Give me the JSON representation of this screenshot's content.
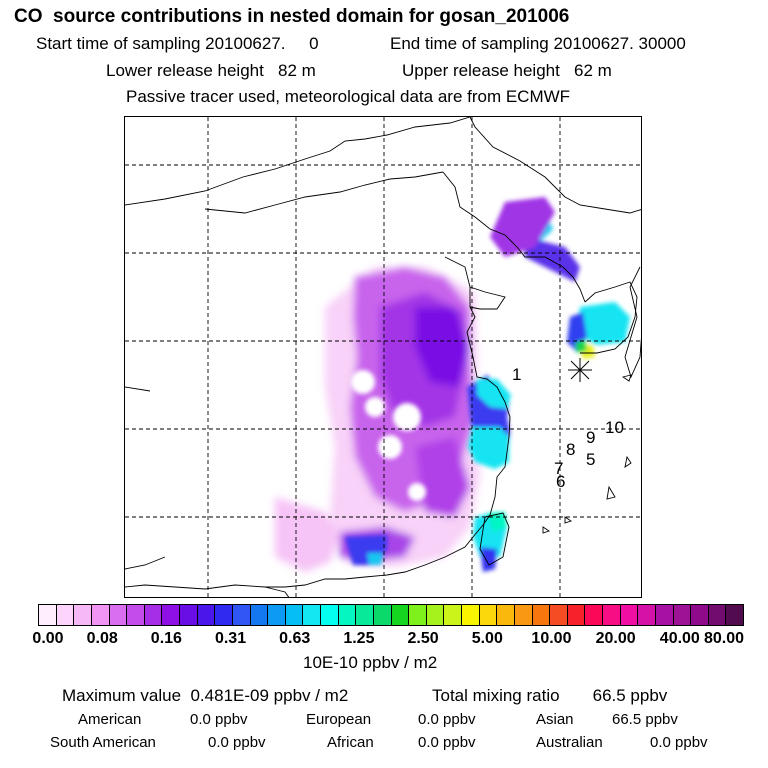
{
  "header": {
    "title": "CO  source contributions in nested domain for gosan_201006",
    "start_time": "Start time of sampling 20100627.     0",
    "end_time": "End time of sampling 20100627. 30000",
    "lower_release": "Lower release height   82 m",
    "upper_release": "Upper release height   62 m",
    "note": "Passive tracer used, meteorological data are from ECMWF"
  },
  "colorbar": {
    "colors": [
      "#ffeefe",
      "#fcd4fc",
      "#f7b8f8",
      "#f095f4",
      "#d96ef0",
      "#c34cea",
      "#a52ee6",
      "#8e10e4",
      "#6a0ee6",
      "#4b16ea",
      "#2f2af0",
      "#3056f4",
      "#1478f0",
      "#0c9af4",
      "#05bff4",
      "#14e7f2",
      "#02fff0",
      "#06f6c2",
      "#08ea9a",
      "#0bd96a",
      "#16d51e",
      "#7ef01c",
      "#a5f21c",
      "#cbf41a",
      "#f9f501",
      "#fbd80b",
      "#fbb80c",
      "#f99812",
      "#f7760e",
      "#f54c24",
      "#f72229",
      "#fc0858",
      "#f80e84",
      "#f10ea2",
      "#d412a8",
      "#a812a4",
      "#9e1296",
      "#8f0a8a",
      "#720c6f",
      "#520b4f"
    ],
    "ticks": [
      "0.00",
      "0.08",
      "0.16",
      "0.31",
      "0.63",
      "1.25",
      "2.50",
      "5.00",
      "10.00",
      "20.00",
      "40.00",
      "80.00"
    ],
    "units": "10E-10 ppbv / m2"
  },
  "summary": {
    "max_value": "Maximum value  0.481E-09 ppbv / m2",
    "total_mixing": "Total mixing ratio       66.5 ppbv",
    "regions": [
      {
        "name": "American",
        "value": "0.0 ppbv"
      },
      {
        "name": "European",
        "value": "0.0 ppbv"
      },
      {
        "name": "Asian",
        "value": "66.5 ppbv"
      },
      {
        "name": "South American",
        "value": "0.0 ppbv"
      },
      {
        "name": "African",
        "value": "0.0 ppbv"
      },
      {
        "name": "Australian",
        "value": "0.0 ppbv"
      }
    ]
  },
  "stations": [
    "1",
    "5",
    "6",
    "7",
    "8",
    "9",
    "10"
  ]
}
